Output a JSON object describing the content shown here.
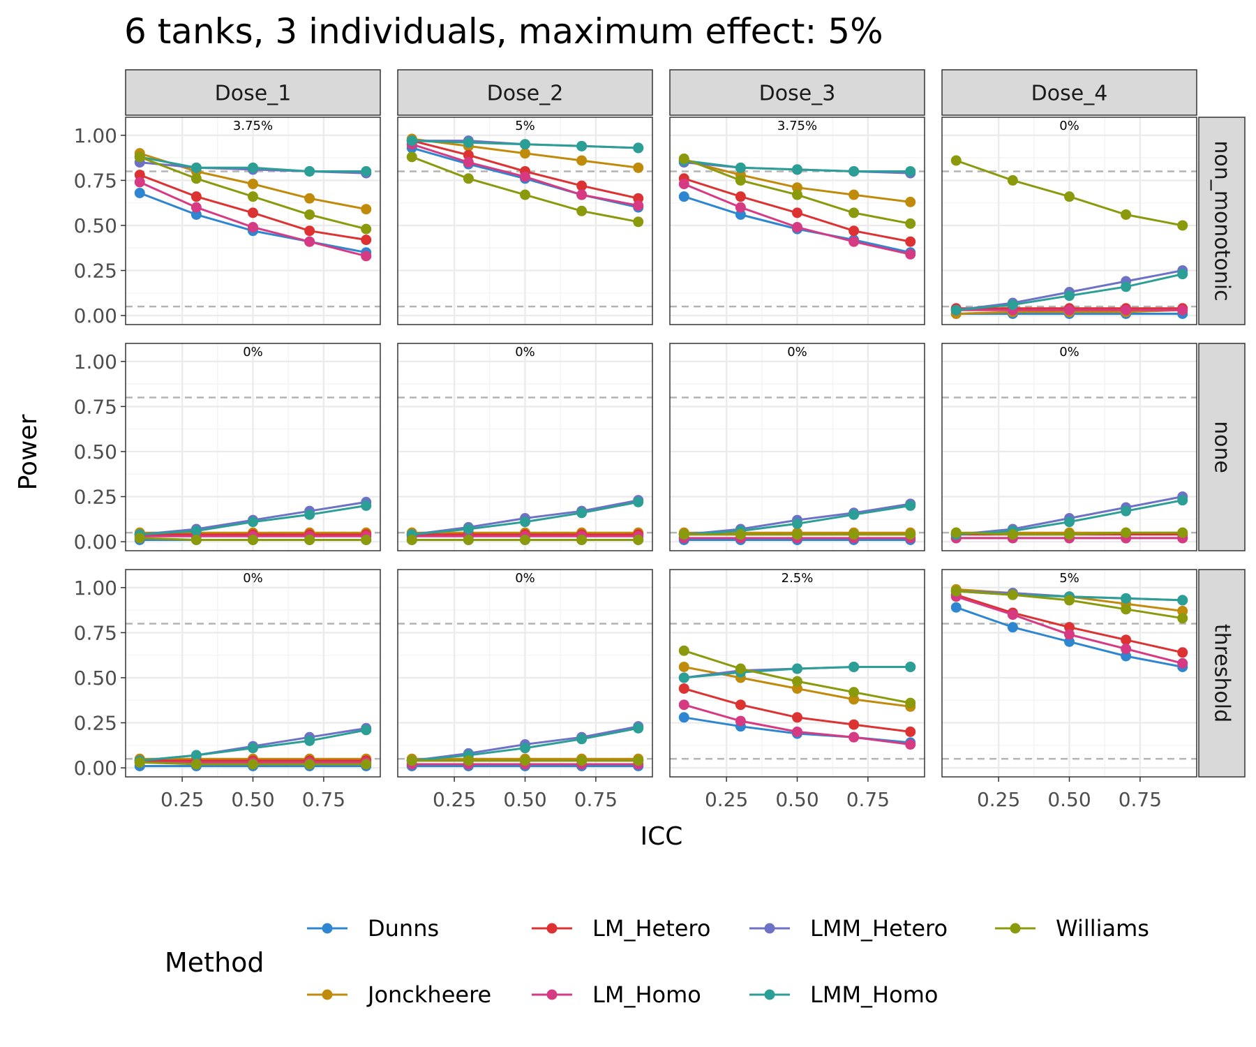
{
  "chart_data": {
    "type": "line",
    "title": "6 tanks, 3 individuals, maximum effect: 5%",
    "xlabel": "ICC",
    "ylabel": "Power",
    "x": [
      0.1,
      0.3,
      0.5,
      0.7,
      0.9
    ],
    "xlim": [
      0.05,
      0.95
    ],
    "ylim": [
      -0.05,
      1.1
    ],
    "x_ticks": [
      "0.25",
      "0.50",
      "0.75"
    ],
    "x_tick_values": [
      0.25,
      0.5,
      0.75
    ],
    "y_ticks": [
      "0.00",
      "0.25",
      "0.50",
      "0.75",
      "1.00"
    ],
    "y_tick_values": [
      0,
      0.25,
      0.5,
      0.75,
      1.0
    ],
    "reference_lines": [
      0.05,
      0.8
    ],
    "grid": true,
    "legend": {
      "title": "Method",
      "position": "bottom"
    },
    "columns": [
      "Dose_1",
      "Dose_2",
      "Dose_3",
      "Dose_4"
    ],
    "rows": [
      "non_monotonic",
      "none",
      "threshold"
    ],
    "series_meta": [
      {
        "name": "Dunns",
        "color": "#2E86D1"
      },
      {
        "name": "Jonckheere",
        "color": "#C08A0A"
      },
      {
        "name": "LM_Hetero",
        "color": "#DC3232"
      },
      {
        "name": "LM_Homo",
        "color": "#D63A82"
      },
      {
        "name": "LMM_Hetero",
        "color": "#6E72C6"
      },
      {
        "name": "LMM_Homo",
        "color": "#2B9E96"
      },
      {
        "name": "Williams",
        "color": "#8A9A0C"
      }
    ],
    "panels": [
      {
        "row": "non_monotonic",
        "col": "Dose_1",
        "annotation": "3.75%",
        "series": [
          {
            "name": "Dunns",
            "values": [
              0.68,
              0.56,
              0.47,
              0.41,
              0.35
            ]
          },
          {
            "name": "Jonckheere",
            "values": [
              0.9,
              0.8,
              0.73,
              0.65,
              0.59
            ]
          },
          {
            "name": "LM_Hetero",
            "values": [
              0.78,
              0.66,
              0.57,
              0.47,
              0.42
            ]
          },
          {
            "name": "LM_Homo",
            "values": [
              0.74,
              0.6,
              0.49,
              0.41,
              0.33
            ]
          },
          {
            "name": "LMM_Hetero",
            "values": [
              0.85,
              0.82,
              0.81,
              0.8,
              0.79
            ]
          },
          {
            "name": "LMM_Homo",
            "values": [
              0.88,
              0.82,
              0.82,
              0.8,
              0.8
            ]
          },
          {
            "name": "Williams",
            "values": [
              0.88,
              0.76,
              0.66,
              0.56,
              0.48
            ]
          }
        ]
      },
      {
        "row": "non_monotonic",
        "col": "Dose_2",
        "annotation": "5%",
        "series": [
          {
            "name": "Dunns",
            "values": [
              0.93,
              0.84,
              0.76,
              0.67,
              0.6
            ]
          },
          {
            "name": "Jonckheere",
            "values": [
              0.98,
              0.94,
              0.9,
              0.86,
              0.82
            ]
          },
          {
            "name": "LM_Hetero",
            "values": [
              0.97,
              0.89,
              0.8,
              0.72,
              0.65
            ]
          },
          {
            "name": "LM_Homo",
            "values": [
              0.95,
              0.85,
              0.77,
              0.67,
              0.61
            ]
          },
          {
            "name": "LMM_Hetero",
            "values": [
              0.97,
              0.97,
              0.95,
              0.94,
              0.93
            ]
          },
          {
            "name": "LMM_Homo",
            "values": [
              0.97,
              0.96,
              0.95,
              0.94,
              0.93
            ]
          },
          {
            "name": "Williams",
            "values": [
              0.88,
              0.76,
              0.67,
              0.58,
              0.52
            ]
          }
        ]
      },
      {
        "row": "non_monotonic",
        "col": "Dose_3",
        "annotation": "3.75%",
        "series": [
          {
            "name": "Dunns",
            "values": [
              0.66,
              0.56,
              0.48,
              0.42,
              0.35
            ]
          },
          {
            "name": "Jonckheere",
            "values": [
              0.86,
              0.78,
              0.71,
              0.67,
              0.63
            ]
          },
          {
            "name": "LM_Hetero",
            "values": [
              0.76,
              0.66,
              0.57,
              0.47,
              0.41
            ]
          },
          {
            "name": "LM_Homo",
            "values": [
              0.73,
              0.6,
              0.49,
              0.41,
              0.34
            ]
          },
          {
            "name": "LMM_Hetero",
            "values": [
              0.85,
              0.82,
              0.81,
              0.8,
              0.79
            ]
          },
          {
            "name": "LMM_Homo",
            "values": [
              0.86,
              0.82,
              0.81,
              0.8,
              0.8
            ]
          },
          {
            "name": "Williams",
            "values": [
              0.87,
              0.75,
              0.67,
              0.57,
              0.51
            ]
          }
        ]
      },
      {
        "row": "non_monotonic",
        "col": "Dose_4",
        "annotation": "0%",
        "series": [
          {
            "name": "Dunns",
            "values": [
              0.01,
              0.01,
              0.01,
              0.01,
              0.01
            ]
          },
          {
            "name": "Jonckheere",
            "values": [
              0.01,
              0.02,
              0.02,
              0.02,
              0.03
            ]
          },
          {
            "name": "LM_Hetero",
            "values": [
              0.04,
              0.04,
              0.04,
              0.04,
              0.04
            ]
          },
          {
            "name": "LM_Homo",
            "values": [
              0.03,
              0.03,
              0.03,
              0.03,
              0.03
            ]
          },
          {
            "name": "LMM_Hetero",
            "values": [
              0.03,
              0.07,
              0.13,
              0.19,
              0.25
            ]
          },
          {
            "name": "LMM_Homo",
            "values": [
              0.03,
              0.06,
              0.11,
              0.16,
              0.23
            ]
          },
          {
            "name": "Williams",
            "values": [
              0.86,
              0.75,
              0.66,
              0.56,
              0.5
            ]
          }
        ]
      },
      {
        "row": "none",
        "col": "Dose_1",
        "annotation": "0%",
        "series": [
          {
            "name": "Dunns",
            "values": [
              0.01,
              0.01,
              0.01,
              0.01,
              0.01
            ]
          },
          {
            "name": "Jonckheere",
            "values": [
              0.05,
              0.05,
              0.05,
              0.05,
              0.05
            ]
          },
          {
            "name": "LM_Hetero",
            "values": [
              0.04,
              0.04,
              0.04,
              0.04,
              0.04
            ]
          },
          {
            "name": "LM_Homo",
            "values": [
              0.03,
              0.03,
              0.03,
              0.03,
              0.03
            ]
          },
          {
            "name": "LMM_Hetero",
            "values": [
              0.04,
              0.07,
              0.12,
              0.17,
              0.22
            ]
          },
          {
            "name": "LMM_Homo",
            "values": [
              0.04,
              0.06,
              0.11,
              0.15,
              0.2
            ]
          },
          {
            "name": "Williams",
            "values": [
              0.02,
              0.01,
              0.01,
              0.01,
              0.01
            ]
          }
        ]
      },
      {
        "row": "none",
        "col": "Dose_2",
        "annotation": "0%",
        "series": [
          {
            "name": "Dunns",
            "values": [
              0.01,
              0.01,
              0.01,
              0.01,
              0.01
            ]
          },
          {
            "name": "Jonckheere",
            "values": [
              0.05,
              0.05,
              0.05,
              0.05,
              0.05
            ]
          },
          {
            "name": "LM_Hetero",
            "values": [
              0.04,
              0.04,
              0.04,
              0.04,
              0.04
            ]
          },
          {
            "name": "LM_Homo",
            "values": [
              0.03,
              0.03,
              0.03,
              0.03,
              0.03
            ]
          },
          {
            "name": "LMM_Hetero",
            "values": [
              0.04,
              0.08,
              0.13,
              0.17,
              0.23
            ]
          },
          {
            "name": "LMM_Homo",
            "values": [
              0.04,
              0.07,
              0.11,
              0.16,
              0.22
            ]
          },
          {
            "name": "Williams",
            "values": [
              0.01,
              0.01,
              0.01,
              0.01,
              0.01
            ]
          }
        ]
      },
      {
        "row": "none",
        "col": "Dose_3",
        "annotation": "0%",
        "series": [
          {
            "name": "Dunns",
            "values": [
              0.01,
              0.01,
              0.01,
              0.01,
              0.01
            ]
          },
          {
            "name": "Jonckheere",
            "values": [
              0.05,
              0.05,
              0.05,
              0.05,
              0.05
            ]
          },
          {
            "name": "LM_Hetero",
            "values": [
              0.04,
              0.04,
              0.04,
              0.04,
              0.04
            ]
          },
          {
            "name": "LM_Homo",
            "values": [
              0.02,
              0.02,
              0.02,
              0.02,
              0.02
            ]
          },
          {
            "name": "LMM_Hetero",
            "values": [
              0.04,
              0.07,
              0.12,
              0.16,
              0.21
            ]
          },
          {
            "name": "LMM_Homo",
            "values": [
              0.04,
              0.06,
              0.1,
              0.15,
              0.2
            ]
          },
          {
            "name": "Williams",
            "values": [
              0.04,
              0.04,
              0.04,
              0.04,
              0.04
            ]
          }
        ]
      },
      {
        "row": "none",
        "col": "Dose_4",
        "annotation": "0%",
        "series": [
          {
            "name": "Dunns",
            "values": [
              0.02,
              0.02,
              0.02,
              0.02,
              0.02
            ]
          },
          {
            "name": "Jonckheere",
            "values": [
              0.05,
              0.05,
              0.05,
              0.05,
              0.05
            ]
          },
          {
            "name": "LM_Hetero",
            "values": [
              0.04,
              0.04,
              0.04,
              0.04,
              0.04
            ]
          },
          {
            "name": "LM_Homo",
            "values": [
              0.02,
              0.02,
              0.02,
              0.02,
              0.02
            ]
          },
          {
            "name": "LMM_Hetero",
            "values": [
              0.04,
              0.07,
              0.13,
              0.19,
              0.25
            ]
          },
          {
            "name": "LMM_Homo",
            "values": [
              0.04,
              0.06,
              0.11,
              0.17,
              0.23
            ]
          },
          {
            "name": "Williams",
            "values": [
              0.05,
              0.04,
              0.04,
              0.05,
              0.05
            ]
          }
        ]
      },
      {
        "row": "threshold",
        "col": "Dose_1",
        "annotation": "0%",
        "series": [
          {
            "name": "Dunns",
            "values": [
              0.01,
              0.01,
              0.01,
              0.01,
              0.01
            ]
          },
          {
            "name": "Jonckheere",
            "values": [
              0.05,
              0.05,
              0.05,
              0.05,
              0.05
            ]
          },
          {
            "name": "LM_Hetero",
            "values": [
              0.04,
              0.04,
              0.04,
              0.04,
              0.04
            ]
          },
          {
            "name": "LM_Homo",
            "values": [
              0.03,
              0.03,
              0.03,
              0.03,
              0.03
            ]
          },
          {
            "name": "LMM_Hetero",
            "values": [
              0.04,
              0.07,
              0.12,
              0.17,
              0.22
            ]
          },
          {
            "name": "LMM_Homo",
            "values": [
              0.04,
              0.07,
              0.11,
              0.15,
              0.21
            ]
          },
          {
            "name": "Williams",
            "values": [
              0.03,
              0.02,
              0.02,
              0.02,
              0.02
            ]
          }
        ]
      },
      {
        "row": "threshold",
        "col": "Dose_2",
        "annotation": "0%",
        "series": [
          {
            "name": "Dunns",
            "values": [
              0.01,
              0.01,
              0.01,
              0.01,
              0.01
            ]
          },
          {
            "name": "Jonckheere",
            "values": [
              0.05,
              0.05,
              0.05,
              0.05,
              0.05
            ]
          },
          {
            "name": "LM_Hetero",
            "values": [
              0.04,
              0.04,
              0.04,
              0.04,
              0.04
            ]
          },
          {
            "name": "LM_Homo",
            "values": [
              0.02,
              0.02,
              0.02,
              0.02,
              0.02
            ]
          },
          {
            "name": "LMM_Hetero",
            "values": [
              0.04,
              0.08,
              0.13,
              0.17,
              0.23
            ]
          },
          {
            "name": "LMM_Homo",
            "values": [
              0.04,
              0.07,
              0.11,
              0.16,
              0.22
            ]
          },
          {
            "name": "Williams",
            "values": [
              0.04,
              0.04,
              0.04,
              0.04,
              0.04
            ]
          }
        ]
      },
      {
        "row": "threshold",
        "col": "Dose_3",
        "annotation": "2.5%",
        "series": [
          {
            "name": "Dunns",
            "values": [
              0.28,
              0.23,
              0.19,
              0.17,
              0.14
            ]
          },
          {
            "name": "Jonckheere",
            "values": [
              0.56,
              0.5,
              0.44,
              0.38,
              0.34
            ]
          },
          {
            "name": "LM_Hetero",
            "values": [
              0.44,
              0.35,
              0.28,
              0.24,
              0.2
            ]
          },
          {
            "name": "LM_Homo",
            "values": [
              0.35,
              0.26,
              0.2,
              0.17,
              0.13
            ]
          },
          {
            "name": "LMM_Hetero",
            "values": [
              0.5,
              0.54,
              0.55,
              0.56,
              0.56
            ]
          },
          {
            "name": "LMM_Homo",
            "values": [
              0.5,
              0.53,
              0.55,
              0.56,
              0.56
            ]
          },
          {
            "name": "Williams",
            "values": [
              0.65,
              0.55,
              0.48,
              0.42,
              0.36
            ]
          }
        ]
      },
      {
        "row": "threshold",
        "col": "Dose_4",
        "annotation": "5%",
        "series": [
          {
            "name": "Dunns",
            "values": [
              0.89,
              0.78,
              0.7,
              0.62,
              0.56
            ]
          },
          {
            "name": "Jonckheere",
            "values": [
              0.99,
              0.97,
              0.95,
              0.91,
              0.87
            ]
          },
          {
            "name": "LM_Hetero",
            "values": [
              0.96,
              0.86,
              0.78,
              0.71,
              0.64
            ]
          },
          {
            "name": "LM_Homo",
            "values": [
              0.95,
              0.85,
              0.74,
              0.66,
              0.58
            ]
          },
          {
            "name": "LMM_Hetero",
            "values": [
              0.98,
              0.97,
              0.95,
              0.94,
              0.93
            ]
          },
          {
            "name": "LMM_Homo",
            "values": [
              0.98,
              0.96,
              0.95,
              0.94,
              0.93
            ]
          },
          {
            "name": "Williams",
            "values": [
              0.98,
              0.96,
              0.93,
              0.88,
              0.83
            ]
          }
        ]
      }
    ]
  }
}
